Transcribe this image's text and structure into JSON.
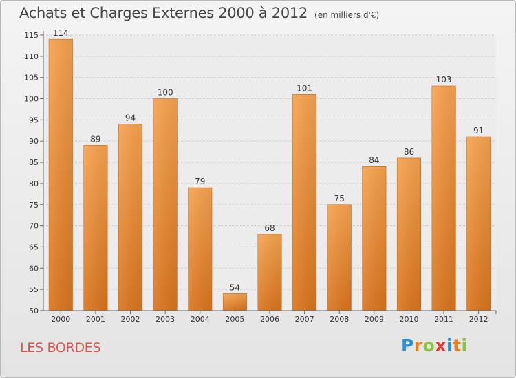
{
  "header": {
    "title": "Achats et Charges Externes 2000 à 2012",
    "unit": "(en milliers d'€)"
  },
  "footer": {
    "commune": "LES BORDES",
    "logo_letters": [
      "P",
      "r",
      "o",
      "x",
      "i",
      "t",
      "i"
    ],
    "logo_colors": [
      "#2b8fd8",
      "#ef7f1a",
      "#8bc43f",
      "#e53935",
      "#2b8fd8",
      "#ef7f1a",
      "#8bc43f"
    ]
  },
  "chart_data": {
    "type": "bar",
    "categories": [
      "2000",
      "2001",
      "2002",
      "2003",
      "2004",
      "2005",
      "2006",
      "2007",
      "2008",
      "2009",
      "2010",
      "2011",
      "2012"
    ],
    "values": [
      114,
      89,
      94,
      100,
      79,
      54,
      68,
      101,
      75,
      84,
      86,
      103,
      91
    ],
    "ylim": [
      50,
      115
    ],
    "yticks": [
      50,
      55,
      60,
      65,
      70,
      75,
      80,
      85,
      90,
      95,
      100,
      105,
      110,
      115
    ],
    "grid": true,
    "bar_color_top": "#f7a24f",
    "bar_color_bottom": "#d9741c",
    "title": "Achats et Charges Externes 2000 à 2012",
    "subtitle": "(en milliers d'€)"
  }
}
